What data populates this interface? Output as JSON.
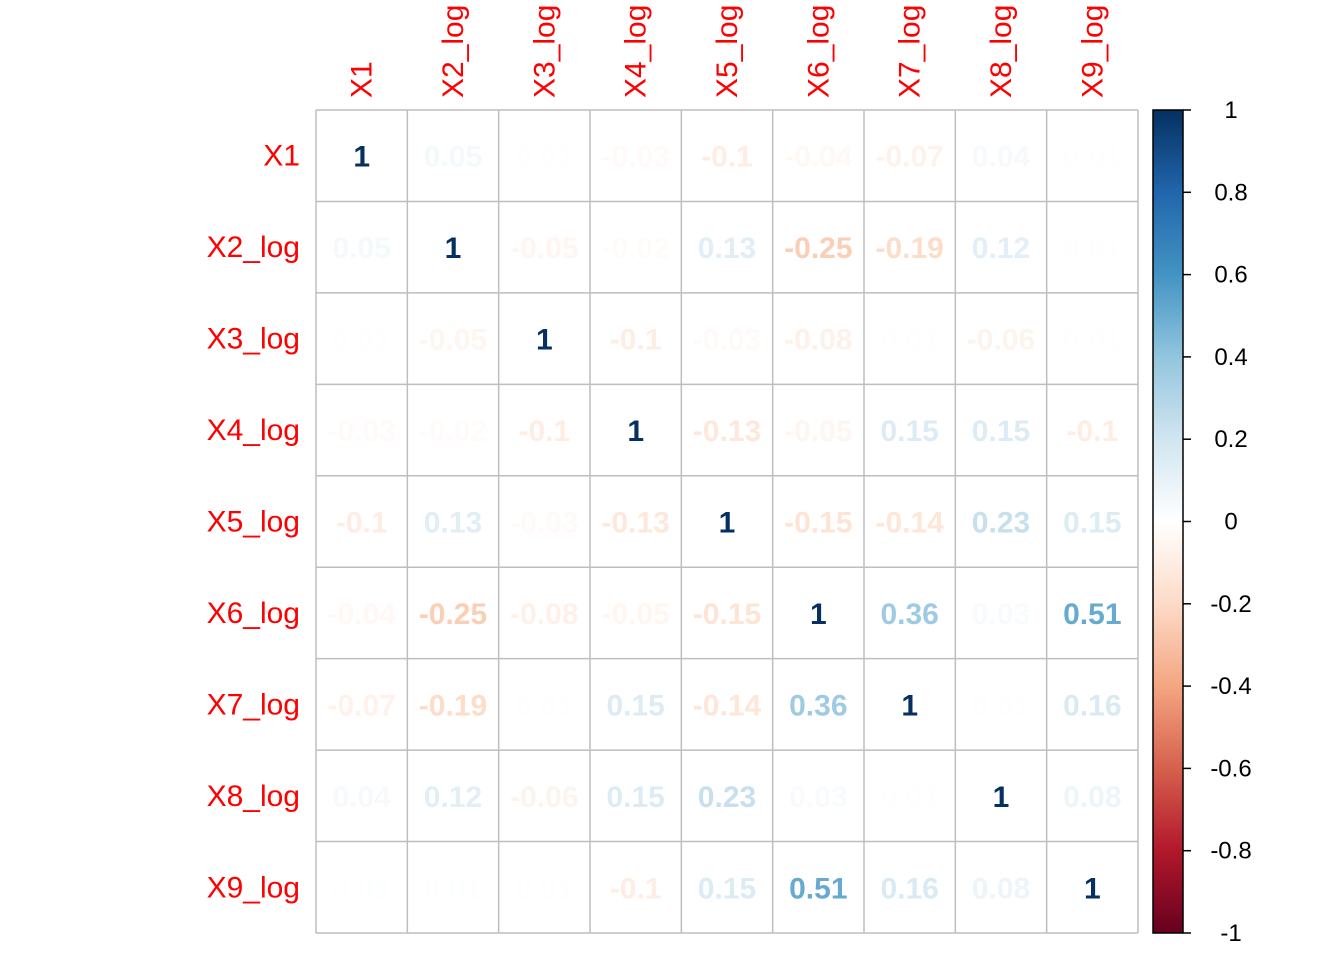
{
  "chart_data": {
    "type": "heatmap",
    "variables": [
      "X1",
      "X2_log",
      "X3_log",
      "X4_log",
      "X5_log",
      "X6_log",
      "X7_log",
      "X8_log",
      "X9_log"
    ],
    "matrix": [
      [
        1,
        0.05,
        0.01,
        -0.03,
        -0.1,
        -0.04,
        -0.07,
        0.04,
        0.01
      ],
      [
        0.05,
        1,
        -0.05,
        -0.02,
        0.13,
        -0.25,
        -0.19,
        0.12,
        0.01
      ],
      [
        0.01,
        -0.05,
        1,
        -0.1,
        -0.03,
        -0.08,
        0.01,
        -0.06,
        0.01
      ],
      [
        -0.03,
        -0.02,
        -0.1,
        1,
        -0.13,
        -0.05,
        0.15,
        0.15,
        -0.1
      ],
      [
        -0.1,
        0.13,
        -0.03,
        -0.13,
        1,
        -0.15,
        -0.14,
        0.23,
        0.15
      ],
      [
        -0.04,
        -0.25,
        -0.08,
        -0.05,
        -0.15,
        1,
        0.36,
        0.03,
        0.51
      ],
      [
        -0.07,
        -0.19,
        0.01,
        0.15,
        -0.14,
        0.36,
        1,
        0.01,
        0.16
      ],
      [
        0.04,
        0.12,
        -0.06,
        0.15,
        0.23,
        0.03,
        0.01,
        1,
        0.08
      ],
      [
        0.01,
        0.01,
        0.01,
        -0.1,
        0.15,
        0.51,
        0.16,
        0.08,
        1
      ]
    ],
    "color_scale": {
      "range": [
        -1,
        1
      ],
      "ticks": [
        "1",
        "0.8",
        "0.6",
        "0.4",
        "0.2",
        "0",
        "-0.2",
        "-0.4",
        "-0.6",
        "-0.8",
        "-1"
      ],
      "tick_values": [
        1,
        0.8,
        0.6,
        0.4,
        0.2,
        0,
        -0.2,
        -0.4,
        -0.6,
        -0.8,
        -1
      ],
      "colors": [
        "#67001F",
        "#B2182B",
        "#D6604D",
        "#F4A582",
        "#FDDBC7",
        "#FFFFFF",
        "#D1E5F0",
        "#92C5DE",
        "#4393C3",
        "#2166AC",
        "#053061"
      ]
    },
    "label_color": "#FF0000",
    "grid_color": "#BEBEBE",
    "text_labels_in_cells": true
  }
}
